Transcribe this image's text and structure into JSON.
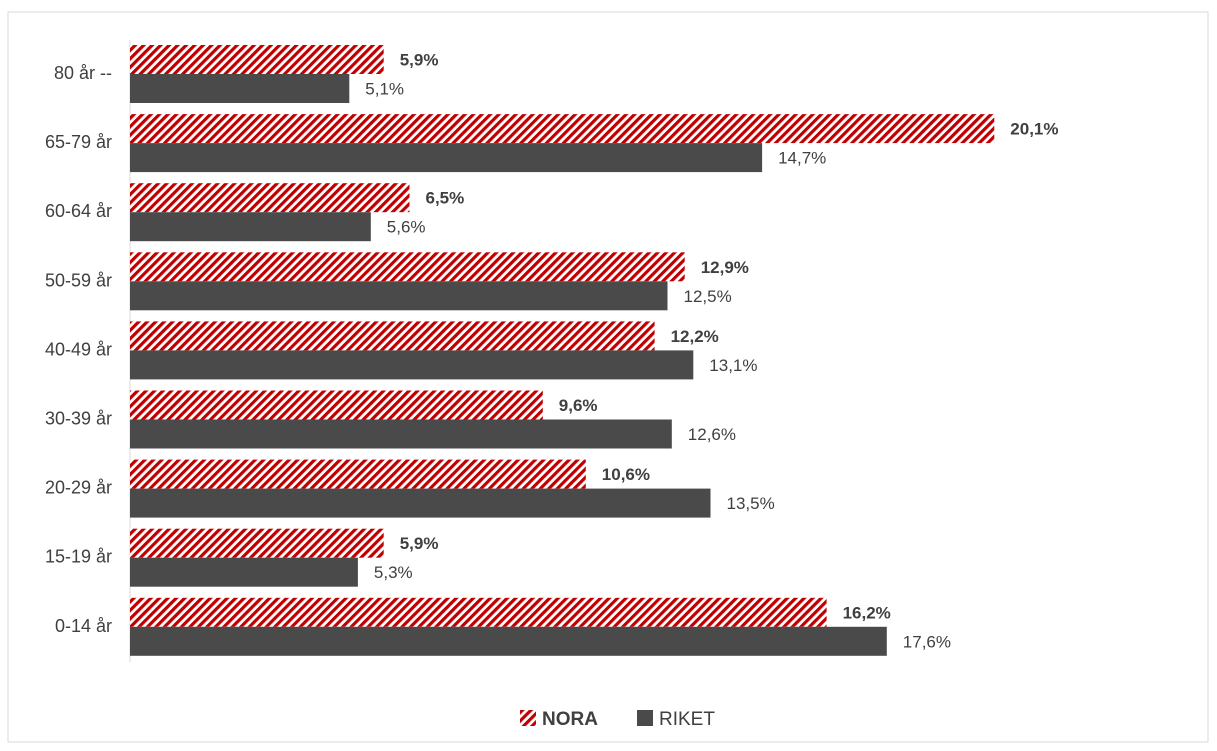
{
  "chart_data": {
    "type": "bar",
    "orientation": "horizontal",
    "categories": [
      "80 år --",
      "65-79 år",
      "60-64 år",
      "50-59 år",
      "40-49 år",
      "30-39 år",
      "20-29 år",
      "15-19 år",
      "0-14 år"
    ],
    "series": [
      {
        "name": "NORA",
        "values": [
          5.9,
          20.1,
          6.5,
          12.9,
          12.2,
          9.6,
          10.6,
          5.9,
          16.2
        ],
        "labels": [
          "5,9%",
          "20,1%",
          "6,5%",
          "12,9%",
          "12,2%",
          "9,6%",
          "10,6%",
          "5,9%",
          "16,2%"
        ],
        "color": "#c00000",
        "pattern": "diagonal-hatch"
      },
      {
        "name": "RIKET",
        "values": [
          5.1,
          14.7,
          5.6,
          12.5,
          13.1,
          12.6,
          13.5,
          5.3,
          17.6
        ],
        "labels": [
          "5,1%",
          "14,7%",
          "5,6%",
          "12,5%",
          "13,1%",
          "12,6%",
          "13,5%",
          "5,3%",
          "17,6%"
        ],
        "color": "#4a4a4a"
      }
    ],
    "unit": "%",
    "legend": "bottom-center",
    "grid": false,
    "title": "",
    "xlabel": "",
    "ylabel": ""
  }
}
